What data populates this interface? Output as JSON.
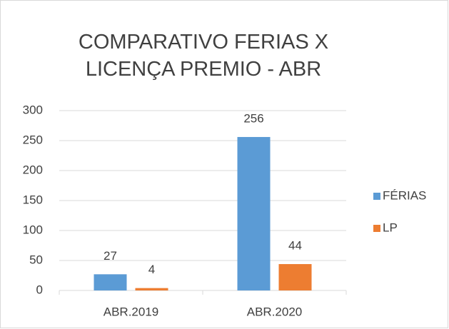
{
  "chart_data": {
    "type": "bar",
    "title": "COMPARATIVO FERIAS X LICENÇA PREMIO - ABR",
    "categories": [
      "ABR.2019",
      "ABR.2020"
    ],
    "series": [
      {
        "name": "FÉRIAS",
        "color": "#5b9bd5",
        "values": [
          27,
          256
        ]
      },
      {
        "name": "LP",
        "color": "#ed7d31",
        "values": [
          4,
          44
        ]
      }
    ],
    "ylim": [
      0,
      300
    ],
    "yticks": [
      0,
      50,
      100,
      150,
      200,
      250,
      300
    ],
    "grid": true,
    "legend": "right"
  }
}
